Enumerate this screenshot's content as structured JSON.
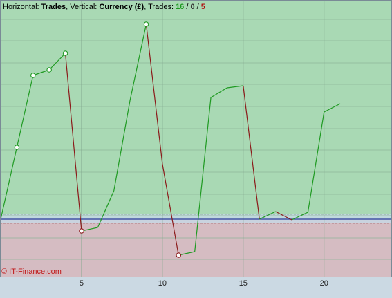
{
  "chart_data": {
    "type": "line",
    "title_parts": [
      "Horizontal: ",
      "Trades",
      ", Vertical: ",
      "Currency (£)",
      ", Trades: ",
      "16",
      " / ",
      "0",
      " / ",
      "5"
    ],
    "watermark": "© IT-Finance.com",
    "x": [
      0,
      1,
      2,
      3,
      4,
      5,
      6,
      7,
      8,
      9,
      10,
      11,
      12,
      13,
      14,
      15,
      16,
      17,
      18,
      19,
      20,
      21
    ],
    "values": [
      0,
      104,
      208,
      216,
      240,
      -17,
      -12,
      41,
      172,
      282,
      80,
      -52,
      -47,
      176,
      190,
      193,
      0,
      11,
      -1,
      10,
      155,
      167
    ],
    "marker_x": [
      1,
      2,
      3,
      4,
      5,
      9,
      11
    ],
    "rise_color": "#1f9a22",
    "fall_color": "#8b1a1a",
    "xlim": [
      0,
      24.2
    ],
    "xticks": [
      5,
      10,
      15,
      20
    ],
    "ylim": [
      -83,
      317
    ],
    "yticks": [
      -58,
      -27,
      5,
      36,
      68,
      100,
      131,
      163,
      195,
      226,
      258,
      289
    ],
    "grid": true
  }
}
